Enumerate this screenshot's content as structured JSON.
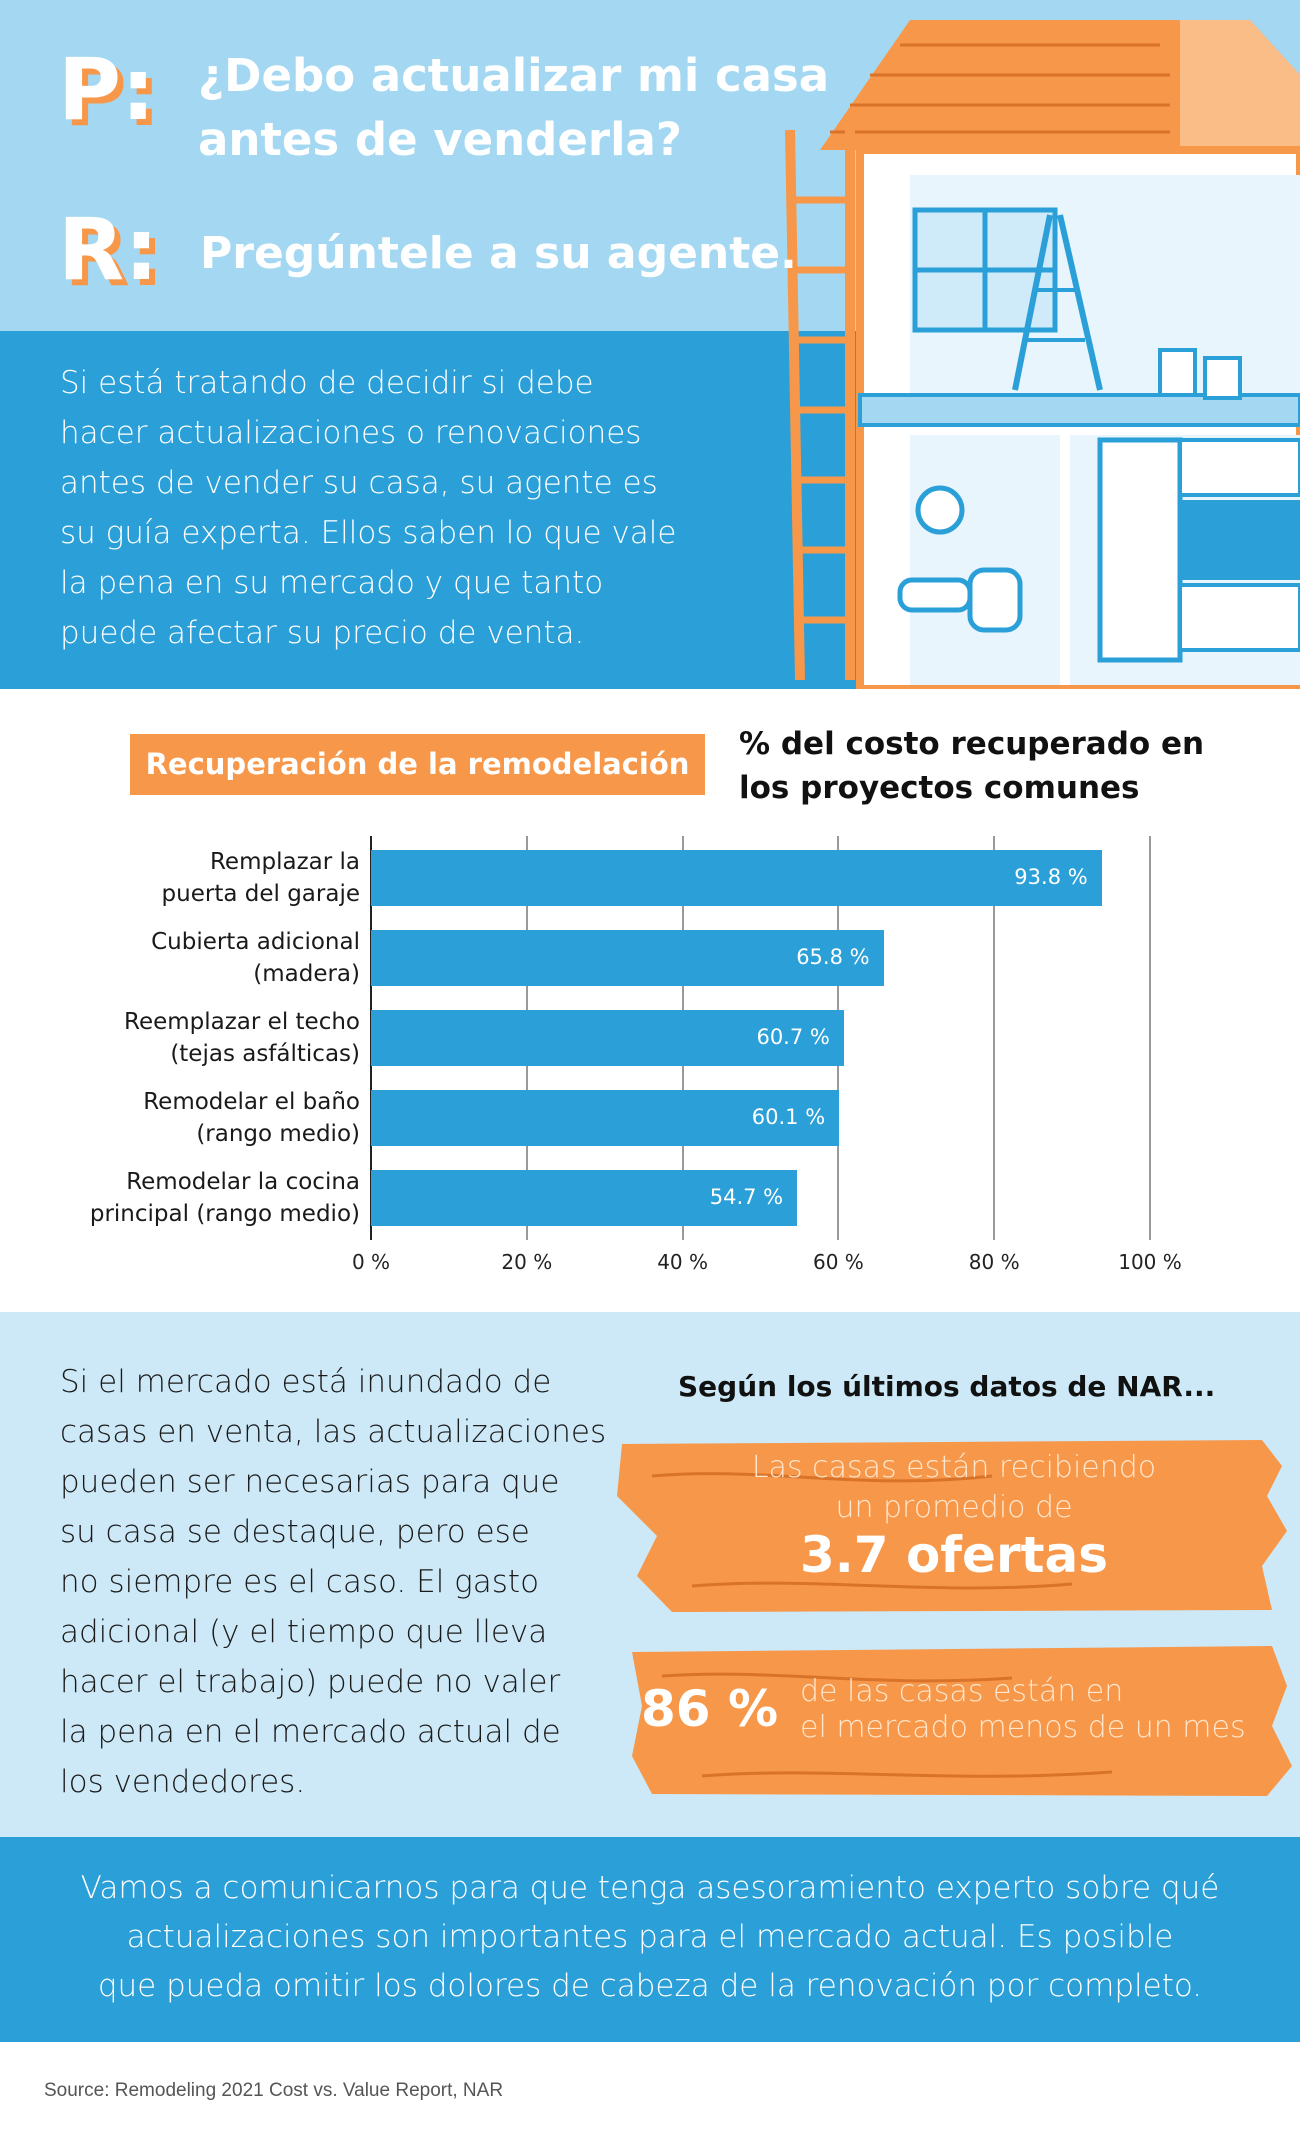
{
  "header": {
    "p_mark": "P:",
    "question": [
      "¿Debo actualizar mi casa",
      "antes de venderla?"
    ],
    "r_mark": "R:",
    "answer": "Pregúntele a su agente."
  },
  "intro": [
    "Si está tratando de decidir si debe",
    "hacer actualizaciones o renovaciones",
    "antes de vender su casa, su agente es",
    "su guía experta. Ellos saben lo que vale",
    "la pena en su mercado y que tanto",
    "puede afectar su precio de venta."
  ],
  "chart_data": {
    "type": "bar",
    "orientation": "horizontal",
    "label": "Recuperación de la remodelación",
    "title": [
      "% del costo recuperado en",
      "los proyectos comunes"
    ],
    "categories": [
      "Remplazar la\npuerta del garaje",
      "Cubierta adicional\n(madera)",
      "Reemplazar el techo\n(tejas asfálticas)",
      "Remodelar el baño\n(rango medio)",
      "Remodelar la cocina\nprincipal (rango medio)"
    ],
    "values": [
      93.8,
      65.8,
      60.7,
      60.1,
      54.7
    ],
    "value_labels": [
      "93.8 %",
      "65.8 %",
      "60.7 %",
      "60.1 %",
      "54.7 %"
    ],
    "color": "#2a9fd8",
    "xlim": [
      0,
      100
    ],
    "xticks": [
      {
        "value": 0,
        "label": "0 %"
      },
      {
        "value": 20,
        "label": "20 %"
      },
      {
        "value": 40,
        "label": "40 %"
      },
      {
        "value": 60,
        "label": "60 %"
      },
      {
        "value": 80,
        "label": "80 %"
      },
      {
        "value": 100,
        "label": "100 %"
      }
    ],
    "grid": true
  },
  "market": [
    "Si el mercado está inundado de",
    "casas en venta, las actualizaciones",
    "pueden ser necesarias para que",
    "su casa se destaque, pero ese",
    "no siempre es el caso. El gasto",
    "adicional (y el tiempo que lleva",
    "hacer el trabajo) puede no valer",
    "la pena en el mercado actual de",
    "los vendedores."
  ],
  "nar": {
    "heading": "Según los últimos datos de NAR...",
    "stat1_text": [
      "Las casas están recibiendo",
      "un promedio de"
    ],
    "stat1_value": "3.7 ofertas",
    "stat2_value": "86 %",
    "stat2_text": [
      "de las casas están en",
      "el mercado menos de un mes"
    ]
  },
  "cta": [
    "Vamos a comunicarnos para que tenga asesoramiento experto sobre qué",
    "actualizaciones son importantes para el mercado actual. Es posible",
    "que pueda omitir los dolores de cabeza de la renovación por completo."
  ],
  "source": "Source: Remodeling 2021 Cost vs. Value Report, NAR"
}
